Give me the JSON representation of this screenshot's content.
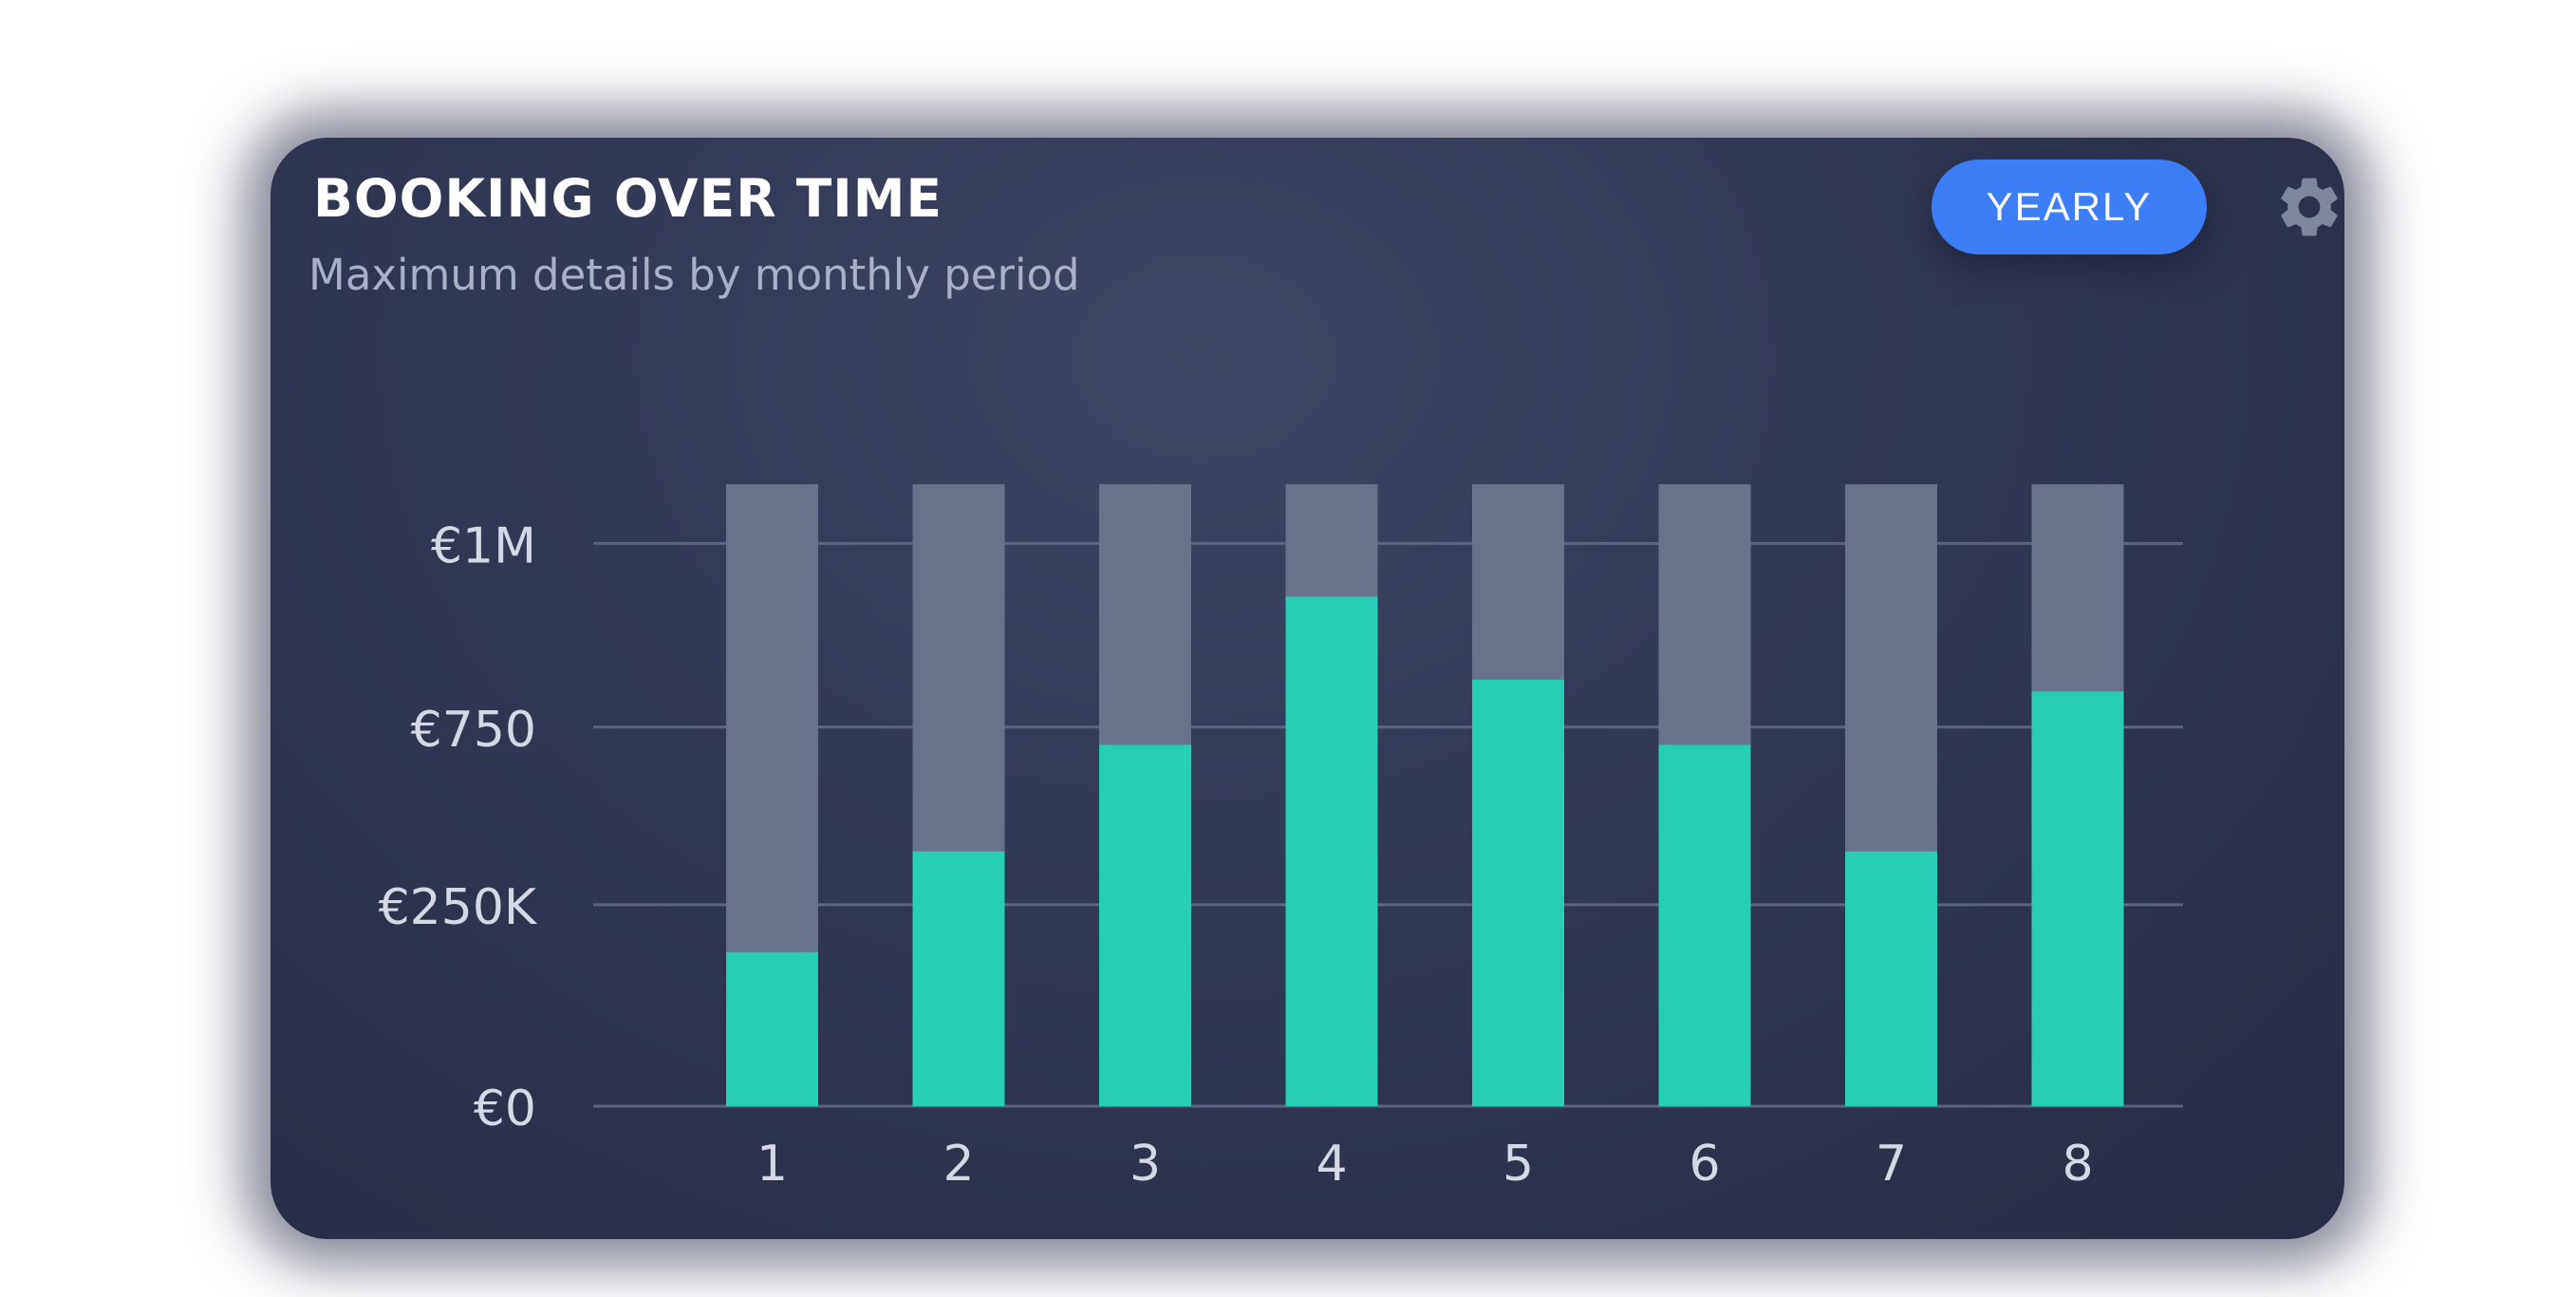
{
  "card": {
    "title": "BOOKING OVER TIME",
    "subtitle": "Maximum details by monthly period",
    "period_button": "YEARLY",
    "settings_icon": "gear-icon"
  },
  "colors": {
    "background": "#2e3450",
    "bar_fill": "#26ceb4",
    "bar_track": "#687389",
    "grid": "#5d6580",
    "button": "#3b7ef5",
    "axis_text": "#d5d9e4"
  },
  "chart_data": {
    "type": "bar",
    "categories": [
      "1",
      "2",
      "3",
      "4",
      "5",
      "6",
      "7",
      "8"
    ],
    "y_ticks": [
      "€0",
      "€250K",
      "€750",
      "€1M"
    ],
    "series": [
      {
        "values": [
          0.26,
          0.43,
          0.61,
          0.86,
          0.72,
          0.61,
          0.43,
          0.7
        ]
      }
    ],
    "track_max": 1.05,
    "ylim": [
      0,
      1.05
    ],
    "grid": true
  }
}
